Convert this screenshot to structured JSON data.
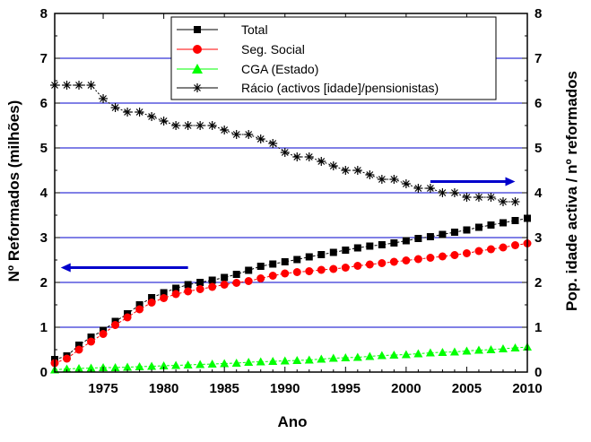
{
  "chart_data": {
    "type": "line",
    "xlabel": "Ano",
    "ylabel_left": "Nº Reformados (milhões)",
    "ylabel_right": "Pop. idade activa / nº reformados",
    "xlim": [
      1971,
      2010
    ],
    "ylim": [
      0,
      8
    ],
    "xticks": [
      1975,
      1980,
      1985,
      1990,
      1995,
      2000,
      2005,
      2010
    ],
    "yticks": [
      0,
      1,
      2,
      3,
      4,
      5,
      6,
      7,
      8
    ],
    "gridlines": [
      1,
      2,
      3,
      4,
      5,
      6,
      7
    ],
    "grid_color": "#0000cc",
    "legend_position": "top-center",
    "x": [
      1971,
      1972,
      1973,
      1974,
      1975,
      1976,
      1977,
      1978,
      1979,
      1980,
      1981,
      1982,
      1983,
      1984,
      1985,
      1986,
      1987,
      1988,
      1989,
      1990,
      1991,
      1992,
      1993,
      1994,
      1995,
      1996,
      1997,
      1998,
      1999,
      2000,
      2001,
      2002,
      2003,
      2004,
      2005,
      2006,
      2007,
      2008,
      2009,
      2010
    ],
    "series": [
      {
        "name": "Total",
        "marker": "square",
        "color": "#000000",
        "values": [
          0.28,
          0.36,
          0.6,
          0.78,
          0.93,
          1.13,
          1.3,
          1.5,
          1.66,
          1.77,
          1.87,
          1.95,
          2.0,
          2.05,
          2.11,
          2.18,
          2.27,
          2.36,
          2.41,
          2.46,
          2.51,
          2.57,
          2.62,
          2.67,
          2.72,
          2.77,
          2.81,
          2.84,
          2.88,
          2.93,
          2.98,
          3.02,
          3.07,
          3.12,
          3.17,
          3.23,
          3.28,
          3.33,
          3.38,
          3.43
        ]
      },
      {
        "name": "Seg. Social",
        "marker": "circle",
        "color": "#ff0000",
        "values": [
          0.2,
          0.3,
          0.5,
          0.68,
          0.85,
          1.05,
          1.22,
          1.4,
          1.55,
          1.65,
          1.74,
          1.8,
          1.85,
          1.9,
          1.95,
          1.99,
          2.03,
          2.09,
          2.15,
          2.2,
          2.23,
          2.25,
          2.28,
          2.3,
          2.33,
          2.37,
          2.4,
          2.43,
          2.46,
          2.49,
          2.52,
          2.55,
          2.58,
          2.61,
          2.65,
          2.7,
          2.74,
          2.78,
          2.83,
          2.87
        ]
      },
      {
        "name": "CGA (Estado)",
        "marker": "triangle",
        "color": "#00ff00",
        "values": [
          0.05,
          0.07,
          0.08,
          0.09,
          0.1,
          0.1,
          0.11,
          0.12,
          0.13,
          0.14,
          0.15,
          0.16,
          0.17,
          0.18,
          0.19,
          0.2,
          0.22,
          0.23,
          0.24,
          0.25,
          0.26,
          0.27,
          0.29,
          0.31,
          0.32,
          0.33,
          0.35,
          0.37,
          0.38,
          0.39,
          0.41,
          0.43,
          0.44,
          0.45,
          0.47,
          0.49,
          0.5,
          0.52,
          0.54,
          0.56
        ]
      },
      {
        "name": "Rácio (activos [idade]/pensionistas)",
        "marker": "asterisk",
        "color": "#000000",
        "axis": "right",
        "x": [
          1971,
          1972,
          1973,
          1974,
          1975,
          1976,
          1977,
          1978,
          1979,
          1980,
          1981,
          1982,
          1983,
          1984,
          1985,
          1986,
          1987,
          1988,
          1989,
          1990,
          1991,
          1992,
          1993,
          1994,
          1995,
          1996,
          1997,
          1998,
          1999,
          2000,
          2001,
          2002,
          2003,
          2004,
          2005,
          2006,
          2007,
          2008,
          2009
        ],
        "values": [
          6.4,
          6.4,
          6.4,
          6.4,
          6.1,
          5.9,
          5.8,
          5.8,
          5.7,
          5.6,
          5.5,
          5.5,
          5.5,
          5.5,
          5.4,
          5.3,
          5.3,
          5.2,
          5.1,
          4.9,
          4.8,
          4.8,
          4.7,
          4.6,
          4.5,
          4.5,
          4.4,
          4.3,
          4.3,
          4.2,
          4.1,
          4.1,
          4.0,
          4.0,
          3.9,
          3.9,
          3.9,
          3.8,
          3.8
        ]
      }
    ],
    "annotations": [
      {
        "name": "left-arrow",
        "direction": "left",
        "points_to": "left-axis",
        "color": "#0000cc",
        "from_x": 1982,
        "to_x": 1971.5,
        "y": 2.33
      },
      {
        "name": "right-arrow",
        "direction": "right",
        "points_to": "right-axis",
        "color": "#0000cc",
        "from_x": 2002,
        "to_x": 2009,
        "y": 4.25
      }
    ]
  }
}
